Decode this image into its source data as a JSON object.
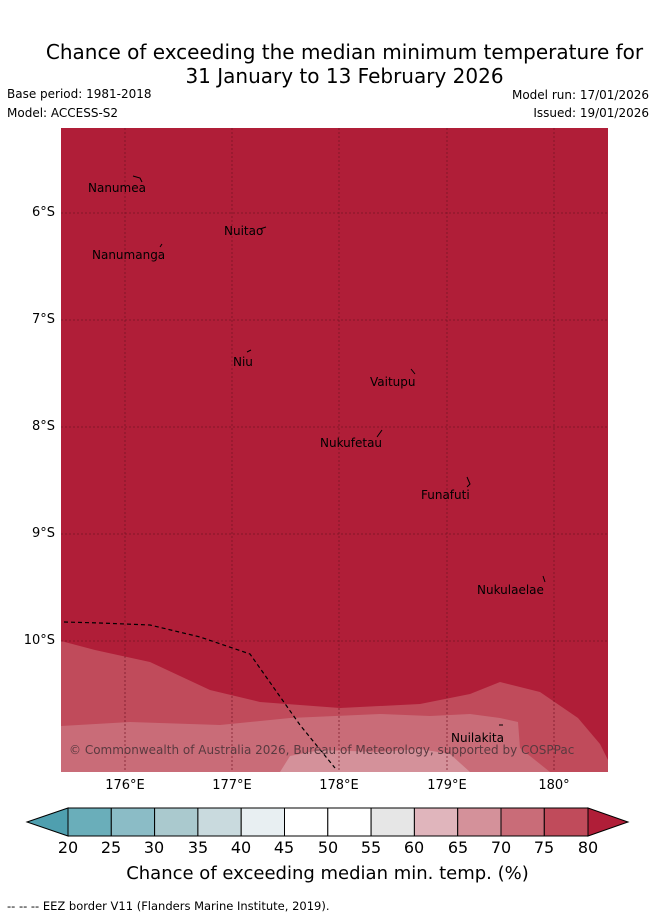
{
  "title_line1": "Chance of exceeding the median minimum temperature for",
  "title_line2": "31 January to 13 February 2026",
  "base_period": "Base period: 1981-2018",
  "model": "Model: ACCESS-S2",
  "model_run": "Model run: 17/01/2026",
  "issued": "Issued: 19/01/2026",
  "copyright": "© Commonwealth of Australia 2026, Bureau of Meteorology, supported by COSPPac",
  "colors": {
    "c20_25": "#6aaeba",
    "c25_30": "#8bbcc6",
    "c30_35": "#aac9ce",
    "c35_40": "#c9dade",
    "c40_45": "#e8eff2",
    "c45_55": "#ffffff",
    "c55_60": "#e6e6e6",
    "c60_65": "#e0b5bc",
    "c65_70": "#d4919a",
    "c70_75": "#c96c78",
    "c75_80": "#c04b5b",
    "c80": "#b01e38"
  },
  "islands": [
    {
      "name": "Nanumea"
    },
    {
      "name": "Nuitao"
    },
    {
      "name": "Nanumanga"
    },
    {
      "name": "Niu"
    },
    {
      "name": "Vaitupu"
    },
    {
      "name": "Nukufetau"
    },
    {
      "name": "Funafuti"
    },
    {
      "name": "Nukulaelae"
    },
    {
      "name": "Nuilakita"
    }
  ],
  "lat_ticks": [
    "6°S",
    "7°S",
    "8°S",
    "9°S",
    "10°S"
  ],
  "lon_ticks": [
    "176°E",
    "177°E",
    "178°E",
    "179°E",
    "180°"
  ],
  "colorbar": {
    "ticks": [
      "20",
      "25",
      "30",
      "35",
      "40",
      "45",
      "50",
      "55",
      "60",
      "65",
      "70",
      "75",
      "80"
    ],
    "label": "Chance of exceeding median min. temp. (%)"
  },
  "legend_eez": "--  --  -- EEZ border V11 (Flanders Marine Institute, 2019)."
}
